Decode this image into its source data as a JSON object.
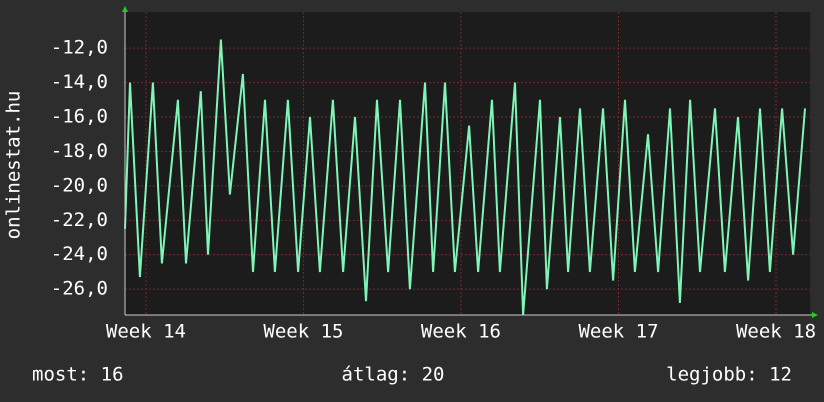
{
  "chart_data": {
    "type": "line",
    "y_label": "onlinestat.hu",
    "x": [
      -0.93,
      -0.71,
      -0.27,
      0.31,
      0.71,
      1.42,
      1.78,
      2.44,
      2.76,
      3.33,
      3.73,
      4.31,
      4.76,
      5.29,
      5.73,
      6.31,
      6.76,
      7.29,
      7.73,
      8.31,
      8.76,
      9.29,
      9.78,
      10.27,
      10.76,
      11.29,
      11.73,
      12.4,
      12.76,
      13.29,
      13.73,
      14.36,
      14.76,
      15.38,
      15.73,
      16.4,
      16.76,
      17.51,
      17.82,
      18.4,
      18.76,
      19.29,
      19.73,
      20.31,
      20.76,
      21.29,
      21.73,
      22.31,
      22.76,
      23.29,
      23.73,
      24.18,
      24.62,
      25.29,
      25.73,
      26.31,
      26.76,
      27.29,
      27.73,
      28.27,
      28.76,
      29.29
    ],
    "series": [
      {
        "color": "#7ff5b8",
        "values": [
          -22.5,
          -14,
          -25.3,
          -14,
          -24.5,
          -15,
          -24.5,
          -14.5,
          -24,
          -11.5,
          -20.5,
          -13.5,
          -25,
          -15,
          -25,
          -15,
          -25,
          -16,
          -25,
          -15,
          -25,
          -16,
          -26.7,
          -15,
          -25,
          -15,
          -26,
          -14,
          -25,
          -14,
          -25,
          -16.5,
          -25,
          -15,
          -25,
          -14,
          -27.5,
          -15,
          -26,
          -16,
          -25,
          -15.5,
          -25,
          -15.5,
          -25.5,
          -15,
          -25,
          -17,
          -25,
          -15.5,
          -26.8,
          -15,
          -25,
          -15.5,
          -25,
          -16,
          -25.5,
          -15.5,
          -25,
          -15.5,
          -24,
          -15.5
        ]
      }
    ],
    "xlim": [
      -0.93,
      29.51
    ],
    "xticks": [
      {
        "value": 0,
        "label": "Week 14"
      },
      {
        "value": 7,
        "label": "Week 15"
      },
      {
        "value": 14,
        "label": "Week 16"
      },
      {
        "value": 21,
        "label": "Week 17"
      },
      {
        "value": 28,
        "label": "Week 18"
      }
    ],
    "ylim": [
      -27.5,
      -9.9
    ],
    "yticks": [
      {
        "value": -12,
        "label": "-12,0"
      },
      {
        "value": -14,
        "label": "-14,0"
      },
      {
        "value": -16,
        "label": "-16,0"
      },
      {
        "value": -18,
        "label": "-18,0"
      },
      {
        "value": -20,
        "label": "-20,0"
      },
      {
        "value": -22,
        "label": "-22,0"
      },
      {
        "value": -24,
        "label": "-24,0"
      },
      {
        "value": -26,
        "label": "-26,0"
      }
    ],
    "grid": true,
    "annotations": [
      "most: 16",
      "átlag: 20",
      "legjobb: 12"
    ]
  }
}
